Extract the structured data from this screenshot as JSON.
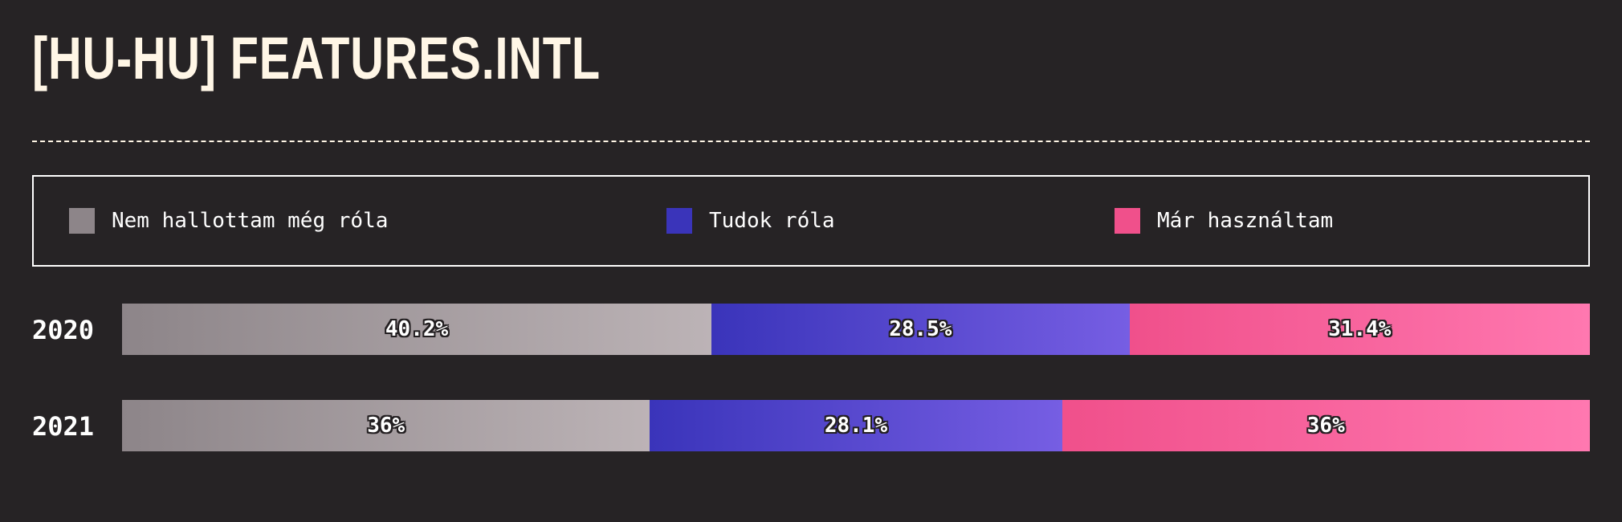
{
  "title": "[HU-HU] FEATURES.INTL",
  "colors": {
    "background": "#262325",
    "title": "#fff6e6",
    "never_heard": "#8d8589",
    "know_about": "#3a34ba",
    "used": "#f0508b"
  },
  "legend": [
    {
      "label": "Nem hallottam még róla",
      "color": "#8d8589"
    },
    {
      "label": "Tudok róla",
      "color": "#3a34ba"
    },
    {
      "label": "Már használtam",
      "color": "#f0508b"
    }
  ],
  "chart_data": {
    "type": "bar",
    "stacked": true,
    "orientation": "horizontal",
    "normalized": true,
    "categories": [
      "2020",
      "2021"
    ],
    "series": [
      {
        "name": "Nem hallottam még róla",
        "values": [
          40.2,
          36
        ],
        "labels": [
          "40.2%",
          "36%"
        ]
      },
      {
        "name": "Tudok róla",
        "values": [
          28.5,
          28.1
        ],
        "labels": [
          "28.5%",
          "28.1%"
        ]
      },
      {
        "name": "Már használtam",
        "values": [
          31.4,
          36
        ],
        "labels": [
          "31.4%",
          "36%"
        ]
      }
    ],
    "legend_position": "top",
    "grid": false
  }
}
